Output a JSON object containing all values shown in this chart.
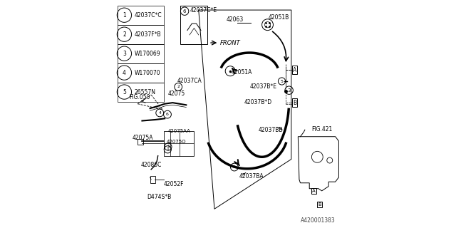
{
  "title": "A420001383",
  "bg_color": "#ffffff",
  "border_color": "#000000",
  "legend_items": [
    [
      "1",
      "42037C*C"
    ],
    [
      "2",
      "42037F*B"
    ],
    [
      "3",
      "W170069"
    ],
    [
      "4",
      "W170070"
    ],
    [
      "5",
      "26557N"
    ]
  ]
}
